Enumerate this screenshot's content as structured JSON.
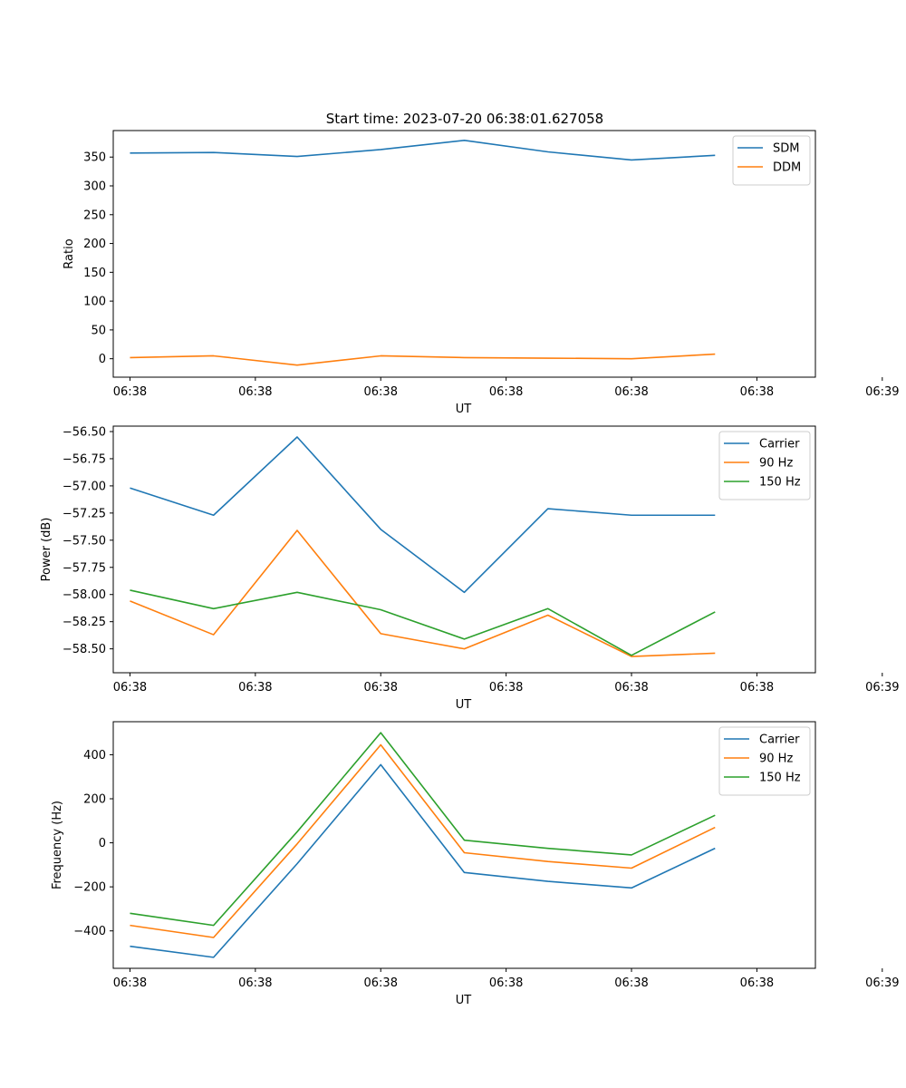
{
  "figure": {
    "suptitle": "Start time: 2023-07-20 06:38:01.627058"
  },
  "chart_data": [
    {
      "type": "line",
      "title": "Start time: 2023-07-20 06:38:01.627058",
      "xlabel": "UT",
      "ylabel": "Ratio",
      "x": [
        1,
        2,
        3,
        4,
        5,
        6,
        7,
        8
      ],
      "xlim": [
        0.8,
        9.2
      ],
      "xticks": [
        1,
        2.5,
        4,
        5.5,
        7,
        8.5,
        10
      ],
      "xtick_labels": [
        "06:38",
        "06:38",
        "06:38",
        "06:38",
        "06:38",
        "06:38",
        "06:39"
      ],
      "xtick_positions": [
        0,
        1.5,
        3,
        4.5,
        6,
        7.5,
        9
      ],
      "ylim": [
        -32,
        396
      ],
      "yticks": [
        0,
        50,
        100,
        150,
        200,
        250,
        300,
        350
      ],
      "ytick_labels": [
        "0",
        "50",
        "100",
        "150",
        "200",
        "250",
        "300",
        "350"
      ],
      "legend": "top-right",
      "series": [
        {
          "name": "SDM",
          "color": "#1f77b4",
          "values": [
            357,
            358,
            351,
            363,
            379,
            359,
            345,
            353
          ]
        },
        {
          "name": "DDM",
          "color": "#ff7f0e",
          "values": [
            2,
            5,
            -11,
            5,
            2,
            1,
            0,
            8
          ]
        }
      ]
    },
    {
      "type": "line",
      "title": "",
      "xlabel": "UT",
      "ylabel": "Power (dB)",
      "x": [
        1,
        2,
        3,
        4,
        5,
        6,
        7,
        8
      ],
      "ylim": [
        -58.72,
        -56.45
      ],
      "yticks": [
        -58.5,
        -58.25,
        -58.0,
        -57.75,
        -57.5,
        -57.25,
        -57.0,
        -56.75,
        -56.5
      ],
      "ytick_labels": [
        "−58.50",
        "−58.25",
        "−58.00",
        "−57.75",
        "−57.50",
        "−57.25",
        "−57.00",
        "−56.75",
        "−56.50"
      ],
      "xtick_labels": [
        "06:38",
        "06:38",
        "06:38",
        "06:38",
        "06:38",
        "06:38",
        "06:39"
      ],
      "xtick_positions": [
        0,
        1.5,
        3,
        4.5,
        6,
        7.5,
        9
      ],
      "legend": "top-right",
      "series": [
        {
          "name": "Carrier",
          "color": "#1f77b4",
          "values": [
            -57.02,
            -57.27,
            -56.55,
            -57.4,
            -57.98,
            -57.21,
            -57.27,
            -57.27
          ]
        },
        {
          "name": "90 Hz",
          "color": "#ff7f0e",
          "values": [
            -58.06,
            -58.37,
            -57.41,
            -58.36,
            -58.5,
            -58.19,
            -58.57,
            -58.54
          ]
        },
        {
          "name": "150 Hz",
          "color": "#2ca02c",
          "values": [
            -57.96,
            -58.13,
            -57.98,
            -58.14,
            -58.41,
            -58.13,
            -58.56,
            -58.16
          ]
        }
      ]
    },
    {
      "type": "line",
      "title": "",
      "xlabel": "UT",
      "ylabel": "Frequency (Hz)",
      "x": [
        1,
        2,
        3,
        4,
        5,
        6,
        7,
        8
      ],
      "ylim": [
        -570,
        550
      ],
      "yticks": [
        -400,
        -200,
        0,
        200,
        400
      ],
      "ytick_labels": [
        "−400",
        "−200",
        "0",
        "200",
        "400"
      ],
      "xtick_labels": [
        "06:38",
        "06:38",
        "06:38",
        "06:38",
        "06:38",
        "06:38",
        "06:39"
      ],
      "xtick_positions": [
        0,
        1.5,
        3,
        4.5,
        6,
        7.5,
        9
      ],
      "legend": "top-right",
      "series": [
        {
          "name": "Carrier",
          "color": "#1f77b4",
          "values": [
            -470,
            -520,
            -95,
            355,
            -135,
            -175,
            -205,
            -25
          ]
        },
        {
          "name": "90 Hz",
          "color": "#ff7f0e",
          "values": [
            -375,
            -430,
            -5,
            445,
            -45,
            -85,
            -115,
            70
          ]
        },
        {
          "name": "150 Hz",
          "color": "#2ca02c",
          "values": [
            -320,
            -375,
            50,
            500,
            12,
            -25,
            -55,
            125
          ]
        }
      ]
    }
  ]
}
